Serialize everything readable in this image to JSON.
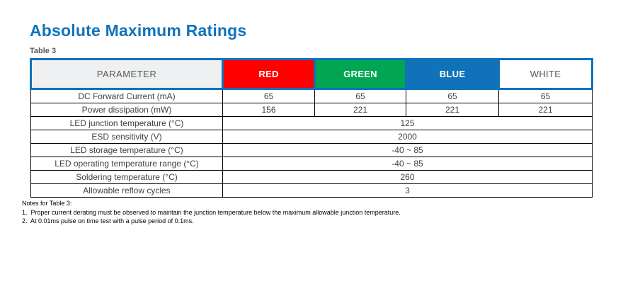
{
  "page": {
    "title": "Absolute Maximum Ratings",
    "table_label": "Table 3"
  },
  "colors": {
    "title_blue": "#1173bc",
    "header_border_blue": "#1072b9",
    "body_border": "#000000",
    "parameter_header_bg": "#eff0f1",
    "text_gray": "#404040"
  },
  "table": {
    "header": {
      "parameter": "PARAMETER",
      "columns": [
        {
          "label": "RED",
          "bg": "#fe0000",
          "fg": "#ffffff",
          "bold": true
        },
        {
          "label": "GREEN",
          "bg": "#00a651",
          "fg": "#ffffff",
          "bold": true
        },
        {
          "label": "BLUE",
          "bg": "#1072b9",
          "fg": "#ffffff",
          "bold": true
        },
        {
          "label": "WHITE",
          "bg": "#ffffff",
          "fg": "#595959",
          "bold": false
        }
      ]
    },
    "rows": [
      {
        "parameter": "DC Forward Current (mA)",
        "values": [
          "65",
          "65",
          "65",
          "65"
        ]
      },
      {
        "parameter": "Power dissipation (mW)",
        "values": [
          "156",
          "221",
          "221",
          "221"
        ]
      },
      {
        "parameter": "LED junction temperature (°C)",
        "merged": "125"
      },
      {
        "parameter": "ESD sensitivity (V)",
        "merged": "2000"
      },
      {
        "parameter": "LED storage temperature (°C)",
        "merged": "-40 ~ 85"
      },
      {
        "parameter": "LED operating temperature range (°C)",
        "merged": "-40 ~ 85"
      },
      {
        "parameter": "Soldering temperature (°C)",
        "merged": "260"
      },
      {
        "parameter": "Allowable reflow cycles",
        "merged": "3"
      }
    ]
  },
  "notes": {
    "heading": "Notes for Table 3:",
    "items": [
      "1.  Proper current derating must be observed to maintain the junction temperature below the maximum allowable junction temperature.",
      "2.  At 0.01ms pulse on time test with a pulse period of 0.1ms."
    ]
  }
}
